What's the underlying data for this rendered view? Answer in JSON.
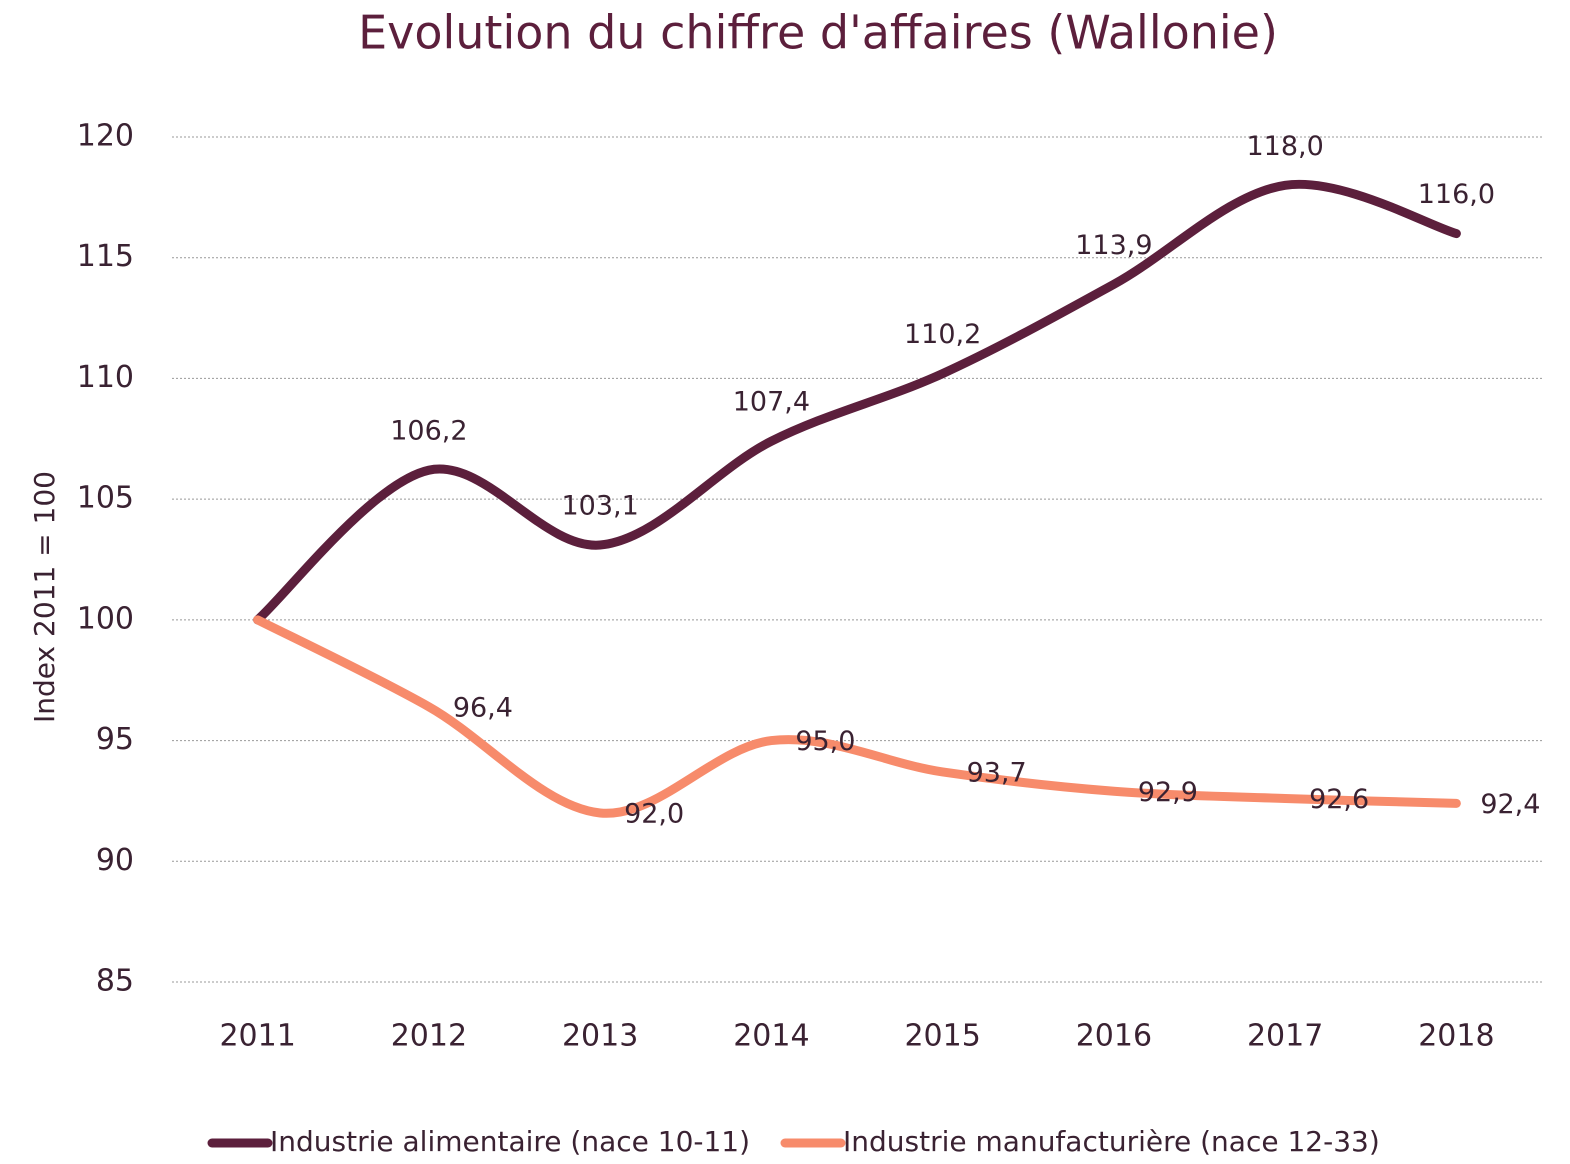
{
  "chart_data": {
    "type": "line",
    "title": "Evolution du chiffre d'affaires (Wallonie)",
    "y_label": "Index 2011 = 100",
    "categories": [
      "2011",
      "2012",
      "2013",
      "2014",
      "2015",
      "2016",
      "2017",
      "2018"
    ],
    "series": [
      {
        "name": "Industrie alimentaire (nace 10-11)",
        "color": "#5c1f3c",
        "values": [
          100,
          106.2,
          103.1,
          107.4,
          110.2,
          113.9,
          118.0,
          116.0
        ],
        "value_labels": [
          null,
          "106,2",
          "103,1",
          "107,4",
          "110,2",
          "113,9",
          "118,0",
          "116,0"
        ]
      },
      {
        "name": "Industrie manufacturière (nace 12-33)",
        "color": "#f78b6b",
        "values": [
          100,
          96.4,
          92.0,
          95.0,
          93.7,
          92.9,
          92.6,
          92.4
        ],
        "value_labels": [
          null,
          "96,4",
          "92,0",
          "95,0",
          "93,7",
          "92,9",
          "92,6",
          "92,4"
        ]
      }
    ],
    "ylim": [
      85,
      120
    ],
    "yticks": [
      85,
      90,
      95,
      100,
      105,
      110,
      115,
      120
    ],
    "grid": true,
    "legend": "bottom"
  }
}
